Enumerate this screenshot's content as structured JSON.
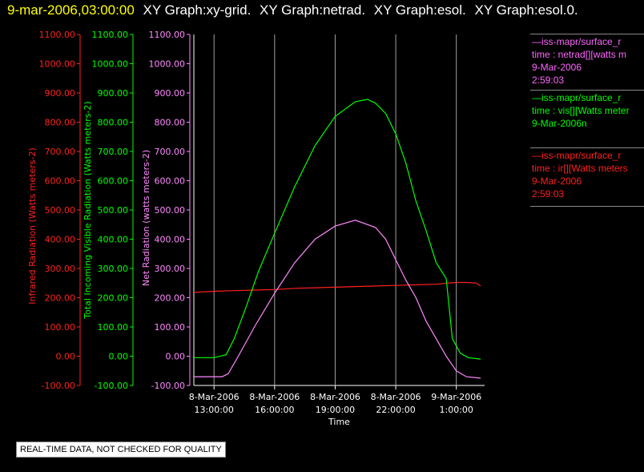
{
  "header": {
    "timestamp": "9-mar-2006,03:00:00",
    "graphs": [
      "XY Graph:xy-grid.",
      "XY Graph:netrad.",
      "XY Graph:esol.",
      "XY Graph:esol.0."
    ]
  },
  "legend": {
    "blocks": [
      {
        "color": "#ff66ff",
        "lines": [
          "—iss-mapr/surface_r",
          "time : netrad[][watts m",
          "9-Mar-2006",
          "2:59:03"
        ]
      },
      {
        "color": "#00ff00",
        "lines": [
          "—iss-mapr/surface_r",
          "time : vis[][Watts meter",
          "9-Mar-2006n"
        ]
      },
      {
        "color": "#ff2020",
        "lines": [
          "—iss-mapr/surface_r",
          "time : ir[][Watts meters",
          "9-Mar-2006",
          "2:59:03"
        ]
      }
    ]
  },
  "footer_note": "REAL-TIME DATA, NOT CHECKED FOR QUALITY",
  "chart_data": {
    "type": "line",
    "xlabel": "Time",
    "x_ticks": [
      {
        "hours": 13,
        "date": "8-Mar-2006",
        "time": "13:00:00"
      },
      {
        "hours": 16,
        "date": "8-Mar-2006",
        "time": "16:00:00"
      },
      {
        "hours": 19,
        "date": "8-Mar-2006",
        "time": "19:00:00"
      },
      {
        "hours": 22,
        "date": "8-Mar-2006",
        "time": "22:00:00"
      },
      {
        "hours": 25,
        "date": "9-Mar-2006",
        "time": "1:00:00"
      }
    ],
    "xlim_hours": [
      12.0,
      26.4
    ],
    "grid": "vertical lines at x ticks",
    "ylim": [
      -100,
      1100
    ],
    "y_ticks": [
      "-100.00",
      "0.00",
      "100.00",
      "200.00",
      "300.00",
      "400.00",
      "500.00",
      "600.00",
      "700.00",
      "800.00",
      "900.00",
      "1000.00",
      "1100.00"
    ],
    "axes": [
      {
        "label": "Infrared Radiation (Watts meters-2)",
        "color": "#ff2020"
      },
      {
        "label": "Total Incoming Visible Radiation (Watts meters-2)",
        "color": "#00ff00"
      },
      {
        "label": "Net Radiation (watts meters-2)",
        "color": "#ff88ff"
      }
    ],
    "series": [
      {
        "name": "ir",
        "color": "#ff2020",
        "points": [
          [
            12.0,
            218
          ],
          [
            13,
            222
          ],
          [
            14,
            224
          ],
          [
            15,
            226
          ],
          [
            16,
            228
          ],
          [
            17,
            232
          ],
          [
            18,
            234
          ],
          [
            19,
            236
          ],
          [
            20,
            238
          ],
          [
            21,
            240
          ],
          [
            22,
            242
          ],
          [
            23,
            244
          ],
          [
            24,
            246
          ],
          [
            24.5,
            250
          ],
          [
            25,
            252
          ],
          [
            25.5,
            252
          ],
          [
            26,
            250
          ],
          [
            26.2,
            240
          ]
        ]
      },
      {
        "name": "vis",
        "color": "#00ff00",
        "points": [
          [
            12.0,
            -5
          ],
          [
            13.0,
            -5
          ],
          [
            13.6,
            5
          ],
          [
            14.0,
            60
          ],
          [
            14.6,
            170
          ],
          [
            15.2,
            290
          ],
          [
            16.0,
            420
          ],
          [
            17.0,
            580
          ],
          [
            18.0,
            720
          ],
          [
            19.0,
            820
          ],
          [
            20.0,
            870
          ],
          [
            20.6,
            878
          ],
          [
            21.0,
            865
          ],
          [
            21.5,
            830
          ],
          [
            22.0,
            760
          ],
          [
            22.5,
            660
          ],
          [
            23.0,
            530
          ],
          [
            23.5,
            430
          ],
          [
            24.0,
            320
          ],
          [
            24.5,
            265
          ],
          [
            24.8,
            60
          ],
          [
            25.2,
            10
          ],
          [
            25.6,
            -5
          ],
          [
            26.2,
            -10
          ]
        ]
      },
      {
        "name": "netrad",
        "color": "#ff88ff",
        "points": [
          [
            12.0,
            -70
          ],
          [
            13.4,
            -70
          ],
          [
            13.7,
            -60
          ],
          [
            14.2,
            0
          ],
          [
            15.0,
            100
          ],
          [
            16.0,
            215
          ],
          [
            17.0,
            320
          ],
          [
            18.0,
            400
          ],
          [
            19.0,
            445
          ],
          [
            20.0,
            465
          ],
          [
            21.0,
            440
          ],
          [
            21.5,
            400
          ],
          [
            22.0,
            330
          ],
          [
            22.5,
            260
          ],
          [
            23.0,
            200
          ],
          [
            23.5,
            120
          ],
          [
            24.0,
            60
          ],
          [
            24.5,
            0
          ],
          [
            25.0,
            -50
          ],
          [
            25.5,
            -70
          ],
          [
            26.2,
            -75
          ]
        ]
      }
    ]
  }
}
